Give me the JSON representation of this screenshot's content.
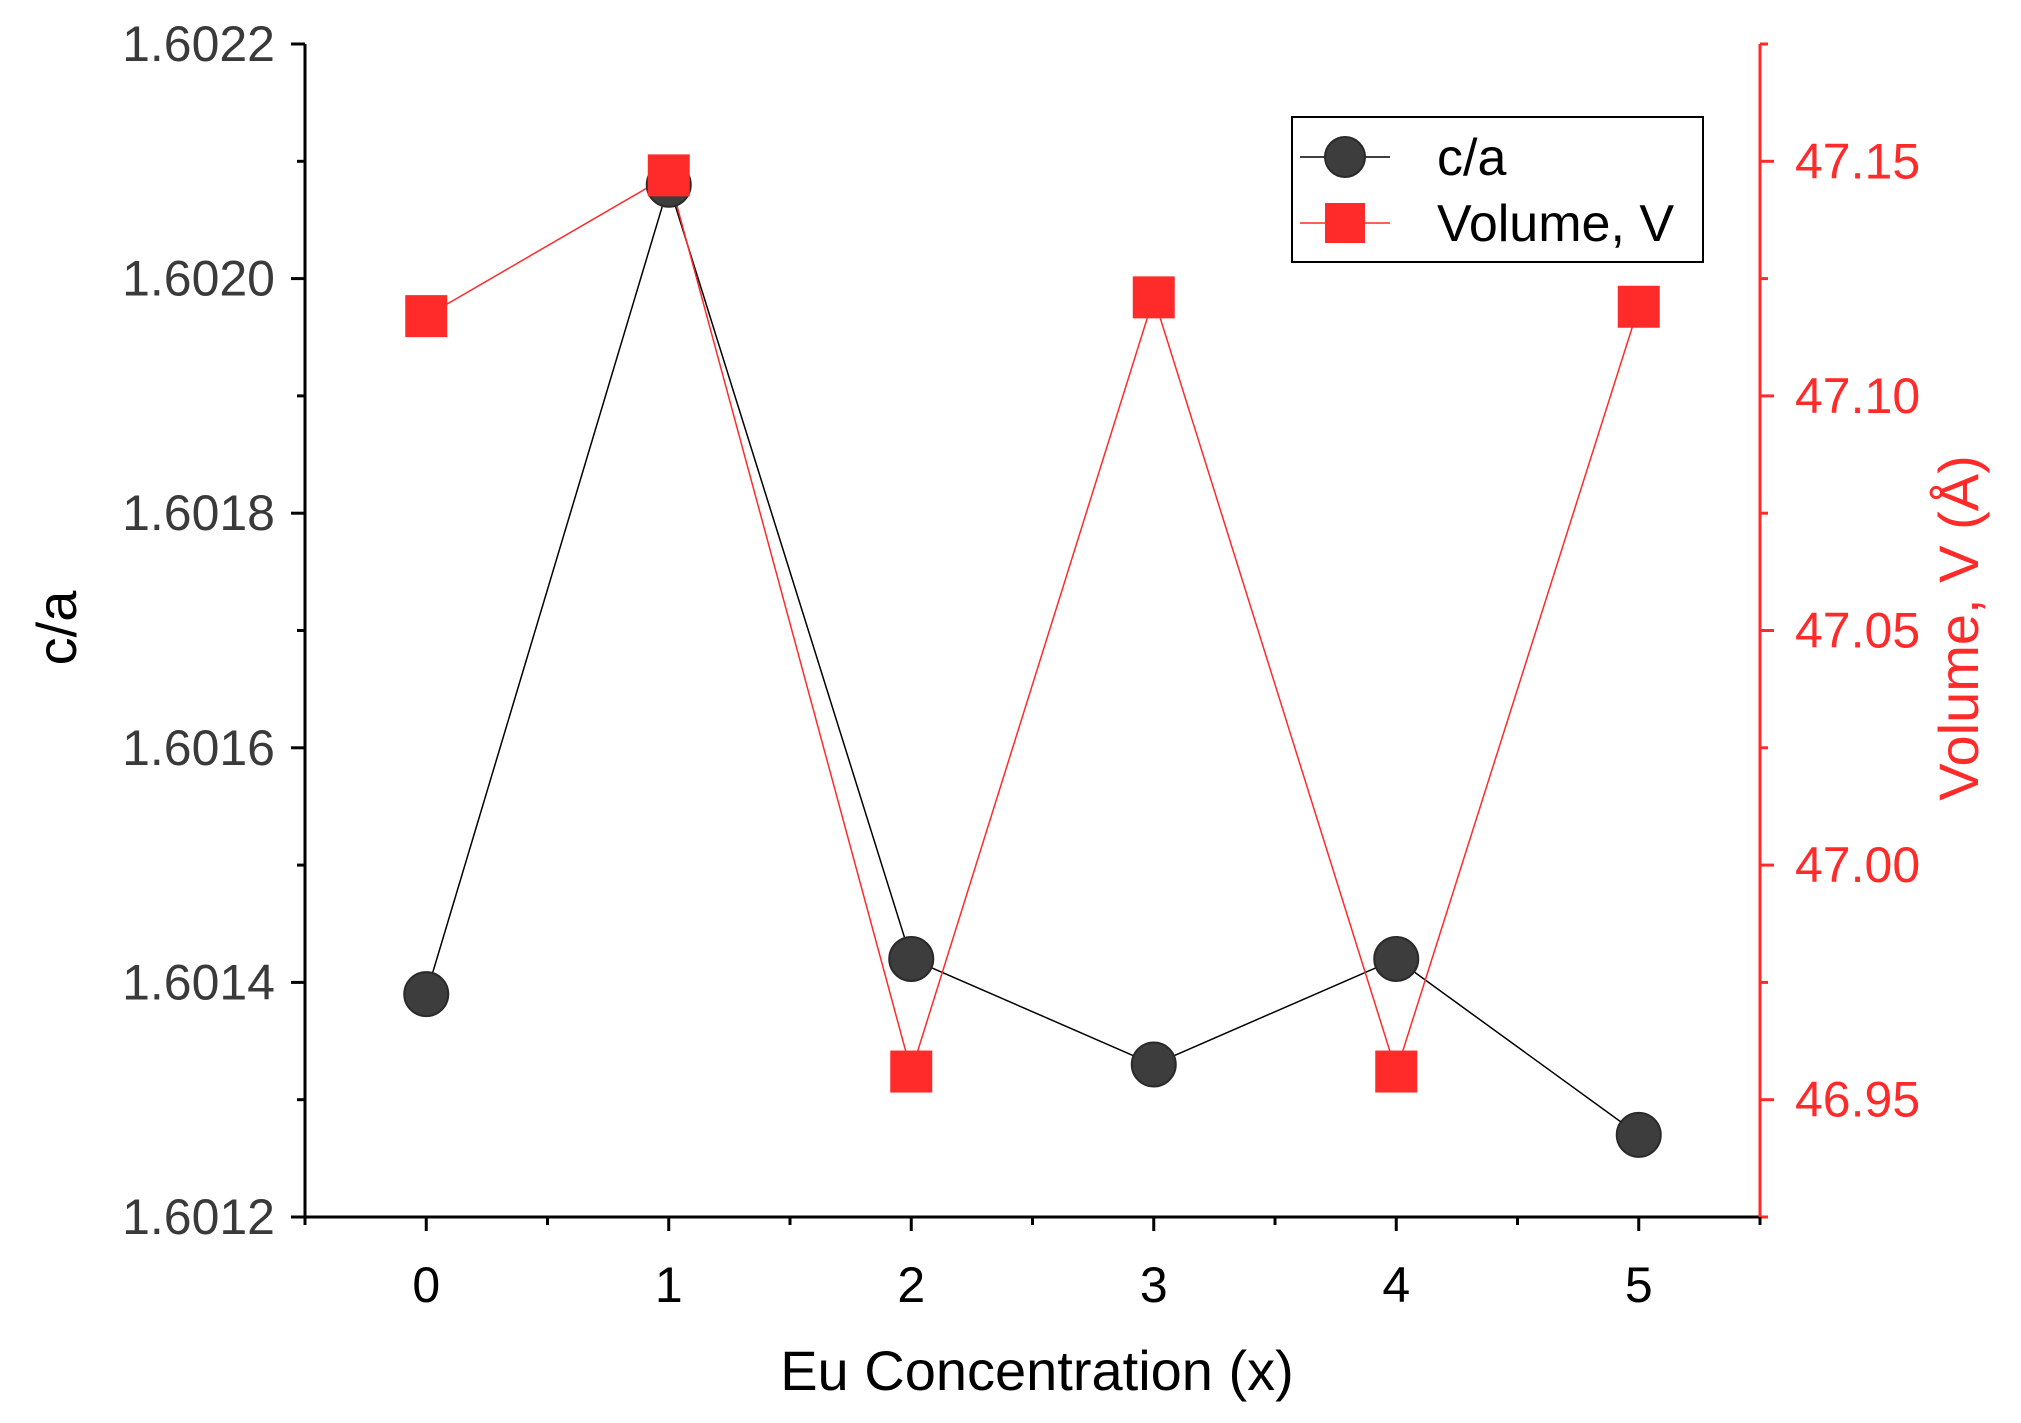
{
  "chart_data": {
    "type": "line",
    "x": [
      0,
      1,
      2,
      3,
      4,
      5
    ],
    "x_tick_labels": [
      "0",
      "1",
      "2",
      "3",
      "4",
      "5"
    ],
    "xlabel": "Eu Concentration (x)",
    "xlim": [
      -0.5,
      5.5
    ],
    "y_left": {
      "label": "c/a",
      "ylim": [
        1.6012,
        1.6022
      ],
      "tick_labels": [
        "1.6012",
        "1.6014",
        "1.6016",
        "1.6018",
        "1.6020",
        "1.6022"
      ],
      "color": "#000000"
    },
    "y_right": {
      "label": "Volume, V (Å)",
      "ylim": [
        46.925,
        47.175
      ],
      "tick_labels": [
        "46.95",
        "47.00",
        "47.05",
        "47.10",
        "47.15"
      ],
      "color": "#ff2a2a"
    },
    "series": [
      {
        "name": "c/a",
        "axis": "left",
        "marker": "circle",
        "color": "#3d3d3d",
        "line_color": "#000000",
        "values": [
          1.60139,
          1.60208,
          1.60142,
          1.60133,
          1.60142,
          1.60127
        ]
      },
      {
        "name": "Volume, V",
        "axis": "right",
        "marker": "square",
        "color": "#ff2a2a",
        "line_color": "#ff2a2a",
        "values": [
          47.117,
          47.147,
          46.956,
          47.121,
          46.956,
          47.119
        ]
      }
    ],
    "legend_position": "top-right",
    "grid": false
  }
}
